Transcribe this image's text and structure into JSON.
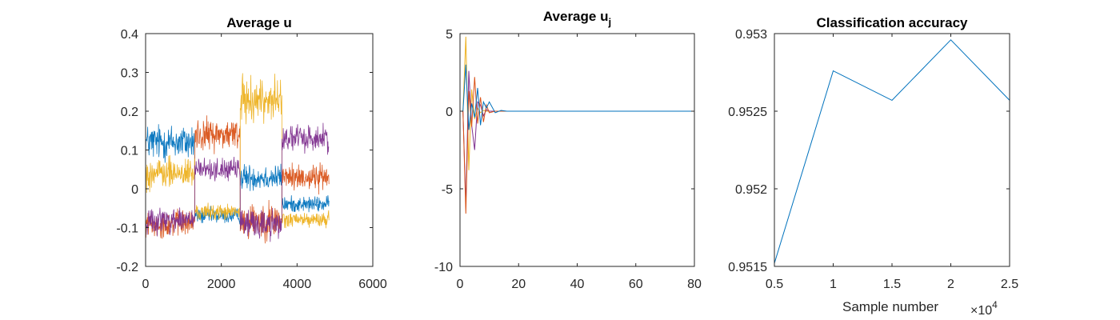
{
  "colors": {
    "blue": "#0072bd",
    "orange": "#d95319",
    "yellow": "#edb120",
    "purple": "#7e2f8e",
    "axis": "#262626",
    "background": "#ffffff"
  },
  "chart_data": [
    {
      "type": "line",
      "title": "Average u",
      "xlabel": "",
      "ylabel": "",
      "xlim": [
        0,
        6000
      ],
      "ylim": [
        -0.2,
        0.4
      ],
      "xticks": [
        "0",
        "2000",
        "4000",
        "6000"
      ],
      "yticks": [
        "-0.2",
        "-0.1",
        "0",
        "0.1",
        "0.2",
        "0.3",
        "0.4"
      ],
      "grid": false,
      "legend": "none",
      "noisy_series_note": "four noisy series; each segment approximated by mean and spread",
      "segments": [
        1300,
        2500,
        3600,
        4850
      ],
      "series": [
        {
          "color": "blue",
          "means": [
            0.12,
            -0.07,
            0.03,
            -0.04
          ],
          "spread": [
            0.07,
            0.03,
            0.05,
            0.03
          ]
        },
        {
          "color": "orange",
          "means": [
            -0.09,
            0.14,
            -0.08,
            0.03
          ],
          "spread": [
            0.05,
            0.06,
            0.07,
            0.05
          ]
        },
        {
          "color": "yellow",
          "means": [
            0.04,
            -0.06,
            0.23,
            -0.08
          ],
          "spread": [
            0.06,
            0.03,
            0.08,
            0.03
          ]
        },
        {
          "color": "purple",
          "means": [
            -0.08,
            0.05,
            -0.09,
            0.13
          ],
          "spread": [
            0.05,
            0.04,
            0.06,
            0.05
          ]
        }
      ]
    },
    {
      "type": "line",
      "title": "Average u",
      "title_subscript": "j",
      "xlabel": "",
      "ylabel": "",
      "xlim": [
        0,
        80
      ],
      "ylim": [
        -10,
        5
      ],
      "xticks": [
        "0",
        "20",
        "40",
        "60",
        "80"
      ],
      "yticks": [
        "-10",
        "-5",
        "0",
        "5"
      ],
      "grid": false,
      "legend": "none",
      "series": [
        {
          "color": "yellow",
          "x": [
            1,
            2,
            3,
            4,
            5,
            6,
            7,
            8,
            9,
            10,
            12,
            14,
            16,
            20,
            80
          ],
          "y": [
            0,
            4.8,
            -3.8,
            1.4,
            -0.5,
            0.2,
            -0.1,
            0.05,
            0,
            0,
            0,
            0,
            0,
            0,
            0
          ]
        },
        {
          "color": "purple",
          "x": [
            1,
            2,
            3,
            4,
            5,
            6,
            7,
            8,
            9,
            10,
            12,
            14,
            16,
            20,
            80
          ],
          "y": [
            0,
            -6.0,
            2.6,
            -0.9,
            -2.5,
            0.6,
            0.4,
            -0.3,
            0.1,
            0,
            0,
            0,
            0,
            0,
            0
          ]
        },
        {
          "color": "orange",
          "x": [
            1,
            2,
            3,
            4,
            5,
            6,
            7,
            8,
            9,
            10,
            12,
            14,
            16,
            20,
            80
          ],
          "y": [
            0,
            -6.6,
            1.3,
            -1.0,
            2.2,
            -0.8,
            0.9,
            -0.7,
            0.4,
            -0.1,
            0,
            0,
            0,
            0,
            0
          ]
        },
        {
          "color": "blue",
          "x": [
            1,
            2,
            3,
            4,
            5,
            6,
            7,
            8,
            9,
            10,
            12,
            14,
            16,
            20,
            80
          ],
          "y": [
            0,
            3.0,
            -1.2,
            0.5,
            -0.4,
            1.5,
            -0.9,
            0.6,
            0.2,
            0.6,
            -0.1,
            0.05,
            0,
            0,
            0
          ]
        }
      ]
    },
    {
      "type": "line",
      "title": "Classification accuracy",
      "xlabel": "Sample number",
      "x_exponent_base": "×10",
      "x_exponent": "4",
      "ylabel": "",
      "xlim": [
        0.5,
        2.5
      ],
      "ylim": [
        0.9515,
        0.953
      ],
      "xticks": [
        "0.5",
        "1",
        "1.5",
        "2",
        "2.5"
      ],
      "yticks": [
        "0.9515",
        "0.952",
        "0.9525",
        "0.953"
      ],
      "grid": false,
      "legend": "none",
      "series": [
        {
          "color": "blue",
          "x": [
            0.5,
            1,
            1.5,
            2,
            2.5
          ],
          "y": [
            0.95152,
            0.95276,
            0.95257,
            0.95296,
            0.95257
          ]
        }
      ]
    }
  ]
}
